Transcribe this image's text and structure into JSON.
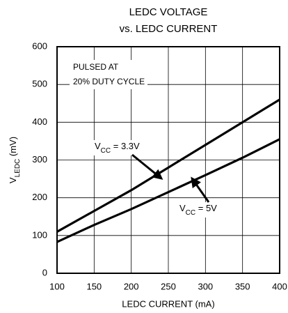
{
  "chart_data": {
    "type": "line",
    "title": "LEDC VOLTAGE",
    "subtitle": "vs. LEDC CURRENT",
    "x_label": "LEDC CURRENT (mA)",
    "y_label": {
      "base": "V",
      "sub": "LEDC",
      "rest": " (mV)"
    },
    "x": [
      100,
      150,
      200,
      250,
      300,
      350,
      400
    ],
    "series": [
      {
        "color": "#000000",
        "values": [
          110,
          165,
          220,
          280,
          340,
          400,
          460
        ],
        "label": {
          "base": "V",
          "sub": "CC",
          "rest": " = 3.3V"
        }
      },
      {
        "color": "#000000",
        "values": [
          83,
          128,
          170,
          215,
          260,
          306,
          355
        ],
        "label": {
          "base": "V",
          "sub": "CC",
          "rest": " = 5V"
        }
      }
    ],
    "annotations": [
      "PULSED AT",
      "20% DUTY CYCLE"
    ],
    "xlim": [
      100,
      400
    ],
    "xticks": [
      100,
      150,
      200,
      250,
      300,
      350,
      400
    ],
    "ylim": [
      0,
      600
    ],
    "yticks": [
      0,
      100,
      200,
      300,
      400,
      500,
      600
    ],
    "grid": true
  }
}
